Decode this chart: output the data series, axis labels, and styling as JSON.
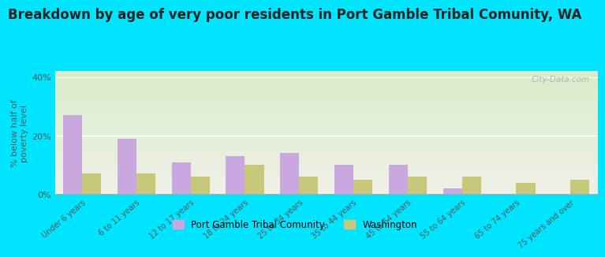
{
  "title": "Breakdown by age of very poor residents in Port Gamble Tribal Comunity, WA",
  "ylabel": "% below half of\npoverty level",
  "categories": [
    "Under 6 years",
    "6 to 11 years",
    "12 to 17 years",
    "18 to 24 years",
    "25 to 34 years",
    "35 to 44 years",
    "45 to 54 years",
    "55 to 64 years",
    "65 to 74 years",
    "75 years and over"
  ],
  "port_gamble_values": [
    27,
    19,
    11,
    13,
    14,
    10,
    10,
    2,
    0,
    0
  ],
  "washington_values": [
    7,
    7,
    6,
    10,
    6,
    5,
    6,
    6,
    4,
    5
  ],
  "port_gamble_color": "#c9a8e0",
  "washington_color": "#c8c87a",
  "ylim": [
    0,
    42
  ],
  "yticks": [
    0,
    20,
    40
  ],
  "ytick_labels": [
    "0%",
    "20%",
    "40%"
  ],
  "background_outer": "#00e5ff",
  "background_plot_top": "#d8edc8",
  "background_plot_bottom": "#f0f0e8",
  "title_fontsize": 12,
  "ylabel_fontsize": 8,
  "legend_label_1": "Port Gamble Tribal Comunity",
  "legend_label_2": "Washington",
  "watermark": "City-Data.com"
}
